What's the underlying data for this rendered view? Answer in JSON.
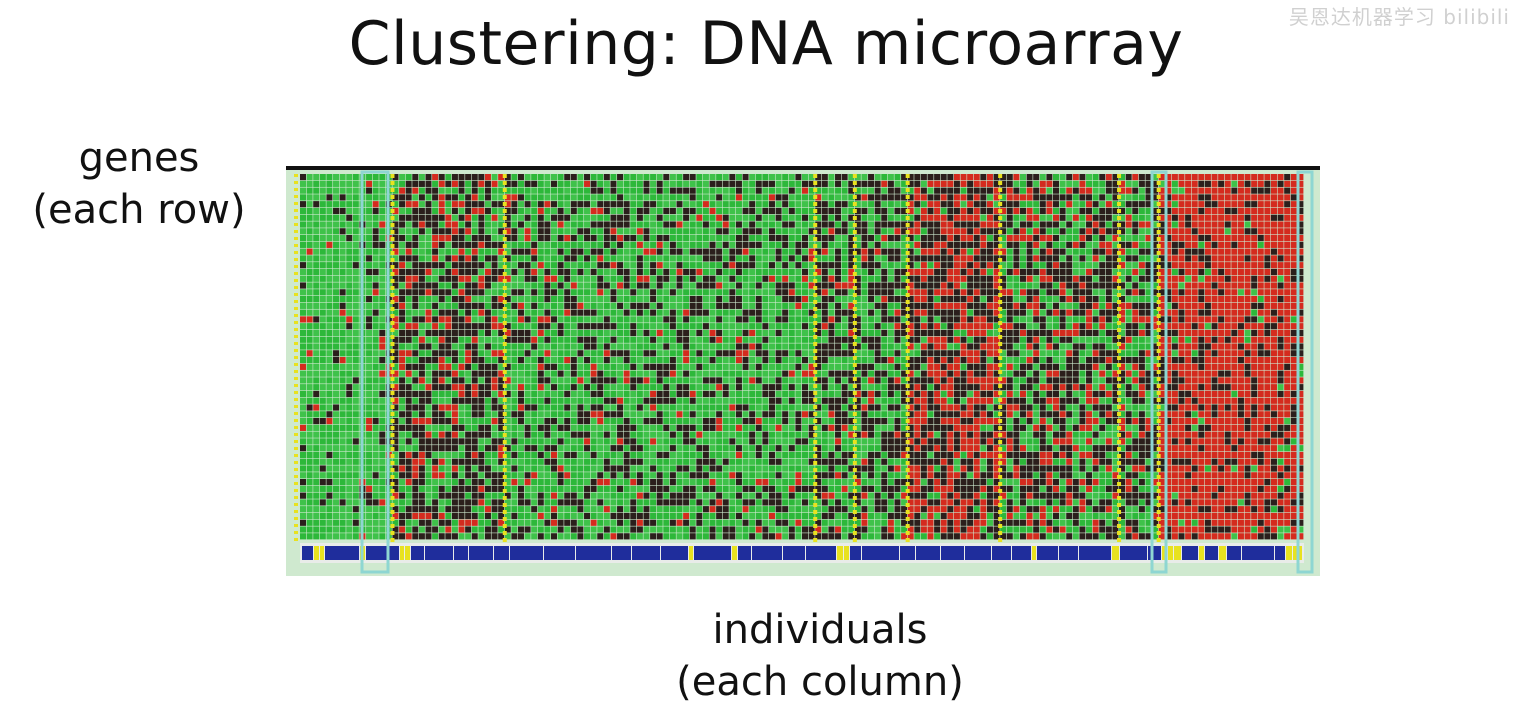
{
  "slide": {
    "title": "Clustering: DNA microarray",
    "watermark": "吴恩达机器学习 bilibili",
    "row_label": {
      "line1": "genes",
      "line2": "(each row)"
    },
    "col_label": {
      "line1": "individuals",
      "line2": "(each column)"
    }
  },
  "colors": {
    "background": "#ffffff",
    "text": "#111111",
    "green": "#2db83a",
    "light_green": "#3fc24a",
    "red": "#d42b1e",
    "dark_cell": "#2b1f1c",
    "gridline": "#808080",
    "yellow": "#e8e21f",
    "blue": "#1f2d9c",
    "frame_teal": "#8ed6d2",
    "frame_bg": "#cfe9cf"
  },
  "heatmap": {
    "type": "heatmap",
    "description_rows": "genes",
    "description_columns": "individuals",
    "palette": [
      "green",
      "dark",
      "red"
    ]
  }
}
